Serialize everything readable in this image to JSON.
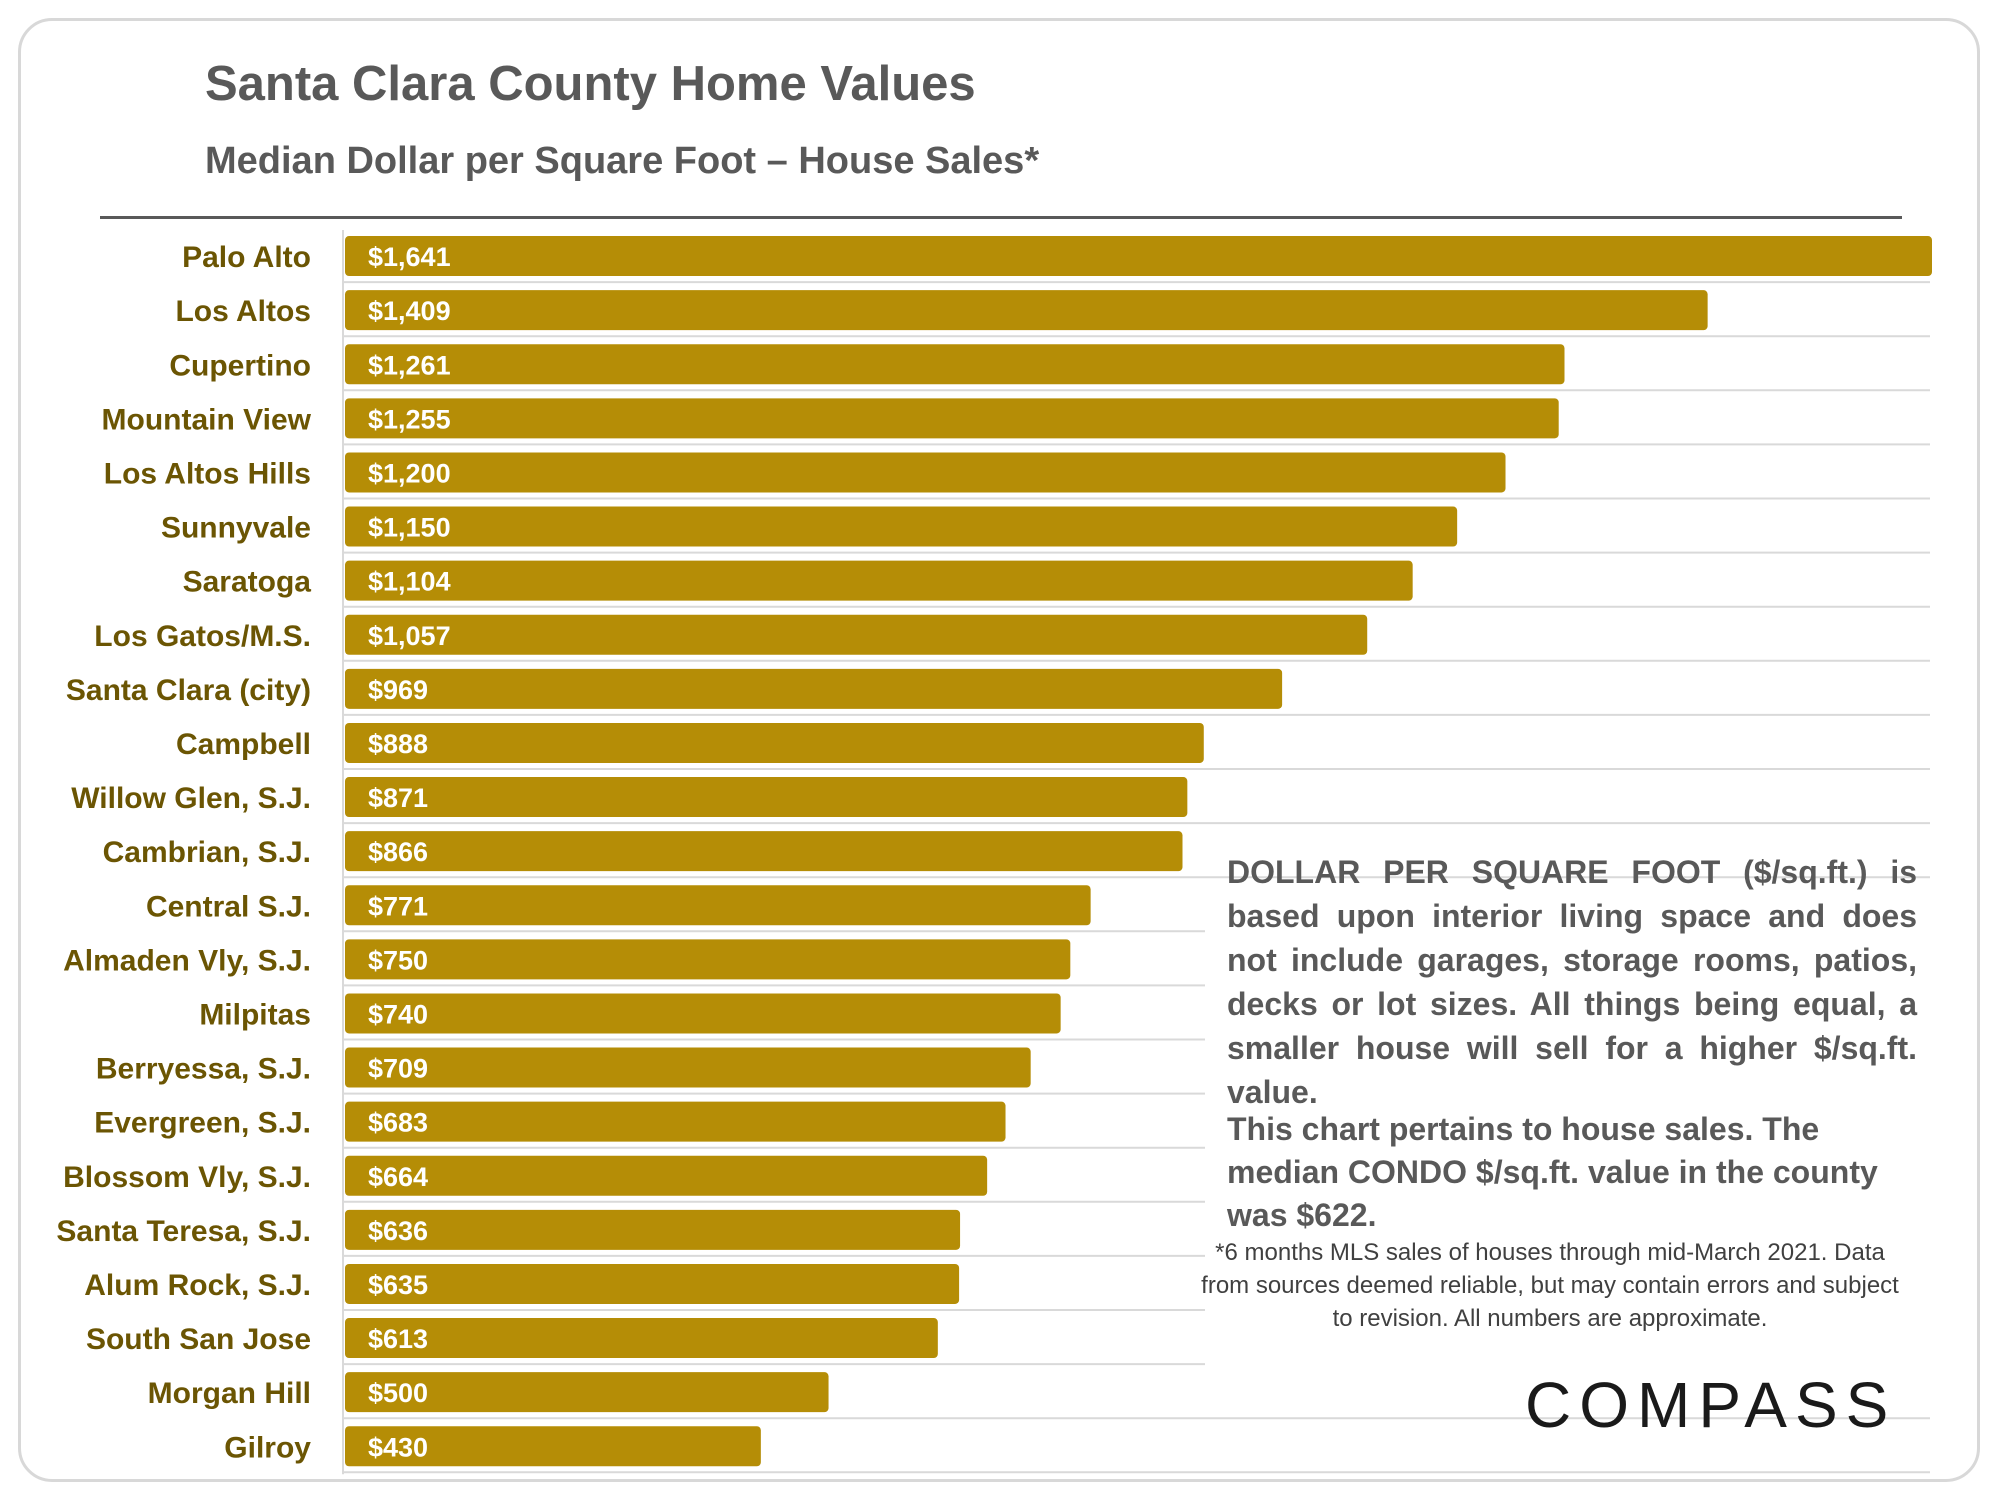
{
  "title": "Santa Clara County Home Values",
  "subtitle": "Median Dollar per Square Foot – House Sales*",
  "notes": {
    "definition": "DOLLAR PER SQUARE FOOT ($/sq.ft.) is based upon interior living space and does not include garages, storage rooms, patios, decks or lot sizes. All things being equal, a smaller house will sell for a higher $/sq.ft. value.",
    "condo": "This chart pertains to house sales. The median CONDO $/sq.ft. value in the county was $622.",
    "footnote": "*6 months MLS sales of houses through mid-March 2021. Data from sources deemed reliable, but may contain errors and subject to revision. All numbers are approximate."
  },
  "logo": "COMPASS",
  "colors": {
    "bar": "#b58d06",
    "label": "#6b5503",
    "bar_text": "#ffffff",
    "grid": "#d9d9d9"
  },
  "chart_data": {
    "type": "bar",
    "orientation": "horizontal",
    "categories": [
      "Palo Alto",
      "Los Altos",
      "Cupertino",
      "Mountain View",
      "Los Altos Hills",
      "Sunnyvale",
      "Saratoga",
      "Los Gatos/M.S.",
      "Santa Clara (city)",
      "Campbell",
      "Willow Glen, S.J.",
      "Cambrian, S.J.",
      "Central S.J.",
      "Almaden Vly, S.J.",
      "Milpitas",
      "Berryessa, S.J.",
      "Evergreen, S.J.",
      "Blossom Vly, S.J.",
      "Santa Teresa, S.J.",
      "Alum Rock, S.J.",
      "South San Jose",
      "Morgan Hill",
      "Gilroy"
    ],
    "values": [
      1641,
      1409,
      1261,
      1255,
      1200,
      1150,
      1104,
      1057,
      969,
      888,
      871,
      866,
      771,
      750,
      740,
      709,
      683,
      664,
      636,
      635,
      613,
      500,
      430
    ],
    "data_labels": [
      "$1,641",
      "$1,409",
      "$1,261",
      "$1,255",
      "$1,200",
      "$1,150",
      "$1,104",
      "$1,057",
      "$969",
      "$888",
      "$871",
      "$866",
      "$771",
      "$750",
      "$740",
      "$709",
      "$683",
      "$664",
      "$636",
      "$635",
      "$613",
      "$500",
      "$430"
    ],
    "xlim": [
      0,
      1641
    ],
    "grid": true,
    "legend": "none"
  }
}
